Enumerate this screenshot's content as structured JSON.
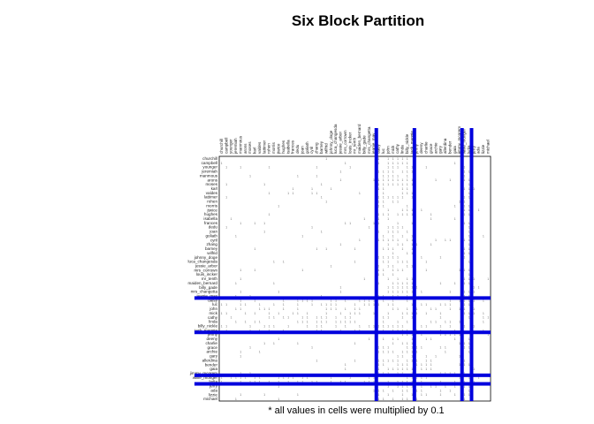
{
  "chart_data": {
    "type": "heatmap",
    "title": "Six Block Partition",
    "footnote": "* all values in cells were multiplied by 0.1",
    "row_labels": [
      "churchill",
      "campbell",
      "younger",
      "jeremiah",
      "manmous",
      "arons",
      "moses",
      "karl",
      "valdes",
      "lattimer",
      "rohen",
      "morris",
      "jtwice",
      "hughes",
      "isabella",
      "frances",
      "dedu",
      "joan",
      "goliath",
      "cyril",
      "zhang",
      "barney",
      "wilfrid",
      "johnny_doge",
      "luca_changesda",
      "jessie_arbor",
      "mrs_corrown",
      "louis_incker",
      "mr_tenth",
      "maiden_bernard",
      "billy_gade",
      "mrs_changetta",
      "jeanie_may",
      "daisy",
      "luc",
      "john",
      "mick",
      "cathy",
      "linda",
      "billy_nickle",
      "jack_maggie",
      "jenny",
      "deeny",
      "charlie",
      "grace",
      "archie",
      "gary",
      "allerdina",
      "bender",
      "gaia",
      "jimmy_mcgrem",
      "willie_monger",
      "lydia",
      "jerry",
      "ada",
      "lizzie",
      "michael"
    ],
    "col_labels": [
      "churchill",
      "campbell",
      "younger",
      "jeremiah",
      "manmous",
      "arons",
      "moses",
      "karl",
      "valdes",
      "lattimer",
      "rohen",
      "morris",
      "jtwice",
      "hughes",
      "isabella",
      "frances",
      "dedu",
      "joan",
      "goliath",
      "cyril",
      "zhang",
      "barney",
      "wilfrid",
      "johnny_doge",
      "luca_changesda",
      "jessie_arbor",
      "mrs_corrown",
      "louis_incker",
      "mr_tenth",
      "maiden_bernard",
      "billy_gade",
      "mrs_changetta",
      "jeanie_may",
      "daisy",
      "luc",
      "john",
      "mick",
      "cathy",
      "linda",
      "billy_nickle",
      "jack_maggie",
      "jenny",
      "deeny",
      "charlie",
      "grace",
      "archie",
      "gary",
      "allerdina",
      "bender",
      "gaia",
      "jimmy_mcgrem",
      "willie_monger",
      "lydia",
      "jerry",
      "ada",
      "lizzie",
      "michael"
    ],
    "block_boundaries_after_index": [
      32,
      40,
      50,
      52
    ],
    "divider_color": "#0000dd",
    "cell_mark": "1"
  }
}
